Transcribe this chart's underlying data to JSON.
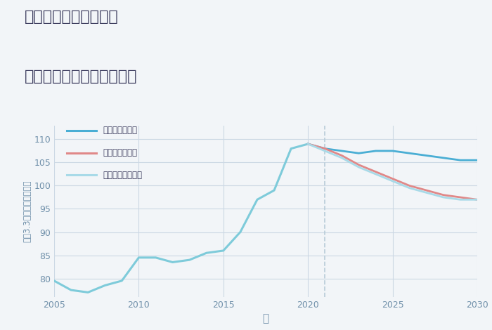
{
  "title_line1": "兵庫県姫路市林田町の",
  "title_line2": "中古マンションの価格推移",
  "xlabel": "年",
  "ylabel": "坪（3.3㎡）単価（万円）",
  "background_color": "#f2f5f8",
  "plot_bg_color": "#f2f5f8",
  "xlim": [
    2005,
    2030
  ],
  "ylim": [
    76,
    113
  ],
  "yticks": [
    80,
    85,
    90,
    95,
    100,
    105,
    110
  ],
  "xticks": [
    2005,
    2010,
    2015,
    2020,
    2025,
    2030
  ],
  "years_historical": [
    2005,
    2006,
    2007,
    2008,
    2009,
    2010,
    2011,
    2012,
    2013,
    2014,
    2015,
    2016,
    2017,
    2018,
    2019,
    2020
  ],
  "values_historical": [
    79.5,
    77.5,
    77.0,
    78.5,
    79.5,
    84.5,
    84.5,
    83.5,
    84.0,
    85.5,
    86.0,
    90.0,
    97.0,
    99.0,
    108.0,
    109.0
  ],
  "years_good": [
    2020,
    2021,
    2022,
    2023,
    2024,
    2025,
    2026,
    2027,
    2028,
    2029,
    2030
  ],
  "values_good": [
    109.0,
    108.0,
    107.5,
    107.0,
    107.5,
    107.5,
    107.0,
    106.5,
    106.0,
    105.5,
    105.5
  ],
  "years_bad": [
    2020,
    2021,
    2022,
    2023,
    2024,
    2025,
    2026,
    2027,
    2028,
    2029,
    2030
  ],
  "values_bad": [
    109.0,
    108.0,
    106.5,
    104.5,
    103.0,
    101.5,
    100.0,
    99.0,
    98.0,
    97.5,
    97.0
  ],
  "years_normal": [
    2020,
    2021,
    2022,
    2023,
    2024,
    2025,
    2026,
    2027,
    2028,
    2029,
    2030
  ],
  "values_normal": [
    109.0,
    107.5,
    106.0,
    104.0,
    102.5,
    101.0,
    99.5,
    98.5,
    97.5,
    97.0,
    97.0
  ],
  "color_historical": "#7ecbda",
  "color_good": "#4aaed4",
  "color_bad": "#e08888",
  "color_normal": "#a8dae8",
  "color_vline": "#b8ccd8",
  "legend_labels": [
    "グッドシナリオ",
    "バッドシナリオ",
    "ノーマルシナリオ"
  ],
  "legend_colors": [
    "#4aaed4",
    "#e08888",
    "#a8dae8"
  ],
  "title_color": "#3a3a5c",
  "axis_color": "#7090aa",
  "grid_color": "#ccd8e4",
  "tick_color": "#7090aa",
  "linewidth_historical": 2.2,
  "linewidth_scenario": 2.0,
  "vline_x": 2021
}
